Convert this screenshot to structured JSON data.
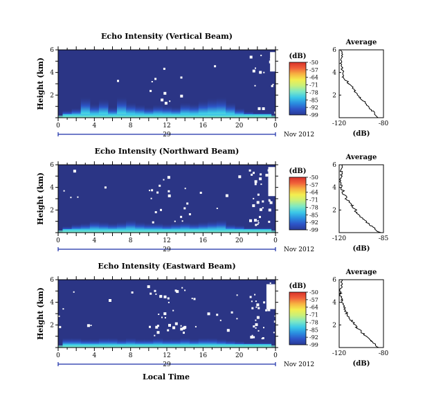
{
  "figure": {
    "time_axis_label": "Local Time",
    "day_label": "29",
    "month_label": "Nov 2012",
    "colorbar_unit": "(dB)",
    "average_title": "Average",
    "average_xlabel": "(dB)",
    "colors": {
      "background_no_echo": "#2b3585",
      "missing": "#ffffff",
      "day_bar": "#1a2fa8",
      "colormap": [
        "#2a3a95",
        "#2d55c8",
        "#2a8ee0",
        "#3cc8e8",
        "#7de8c4",
        "#c8f07a",
        "#f3ee4f",
        "#f7b241",
        "#f0603a",
        "#d9322a"
      ]
    }
  },
  "chart_data": [
    {
      "type": "heatmap",
      "title": "Echo Intensity (Vertical Beam)",
      "ylabel": "Height (km)",
      "x_ticks": [
        "0",
        "4",
        "8",
        "12",
        "16",
        "20",
        "0"
      ],
      "x_range_hours": [
        0,
        24
      ],
      "y_ticks": [
        "6",
        "4",
        "2"
      ],
      "y_range_km": [
        0,
        6
      ],
      "colorbar_ticks": [
        "-50",
        "-57",
        "-64",
        "-71",
        "-78",
        "-85",
        "-92",
        "-99"
      ],
      "colorbar_range_db": [
        -99,
        -50
      ],
      "columns_hours": [
        1,
        2,
        3,
        4,
        5,
        6,
        7,
        8,
        9,
        10,
        11,
        12,
        13,
        14,
        15,
        16,
        17,
        18,
        19,
        20,
        21,
        22,
        23
      ],
      "echo_top_km": [
        0.7,
        0.9,
        1.9,
        1.3,
        1.7,
        1.0,
        1.9,
        1.4,
        1.2,
        1.0,
        1.2,
        1.1,
        1.0,
        1.4,
        1.3,
        1.6,
        1.8,
        1.9,
        1.4,
        0.9,
        0.6,
        0.5,
        0.5
      ],
      "average": {
        "xlim_db": [
          -120,
          -80
        ],
        "x_ticks": [
          "-120",
          "-80"
        ],
        "y_ticks": [
          "6",
          "4",
          "2"
        ],
        "height_km": [
          0.0,
          0.6,
          1.2,
          1.8,
          2.4,
          3.0,
          3.6,
          4.2,
          4.8,
          5.4,
          6.0
        ],
        "value_db": [
          -84,
          -90,
          -95,
          -101,
          -106,
          -111,
          -116,
          -117,
          -119,
          -118,
          -118
        ]
      }
    },
    {
      "type": "heatmap",
      "title": "Echo Intensity (Northward Beam)",
      "ylabel": "Height (km)",
      "x_ticks": [
        "0",
        "4",
        "8",
        "12",
        "16",
        "20",
        "0"
      ],
      "x_range_hours": [
        0,
        24
      ],
      "y_ticks": [
        "6",
        "4",
        "2"
      ],
      "y_range_km": [
        0,
        6
      ],
      "colorbar_ticks": [
        "-50",
        "-57",
        "-64",
        "-71",
        "-78",
        "-85",
        "-92",
        "-99"
      ],
      "colorbar_range_db": [
        -99,
        -50
      ],
      "columns_hours": [
        1,
        2,
        3,
        4,
        5,
        6,
        7,
        8,
        9,
        10,
        11,
        12,
        13,
        14,
        15,
        16,
        17,
        18,
        19,
        20,
        21,
        22,
        23
      ],
      "echo_top_km": [
        0.6,
        0.8,
        0.9,
        1.1,
        1.0,
        0.9,
        1.0,
        1.2,
        1.0,
        0.9,
        0.9,
        0.8,
        0.9,
        1.0,
        0.9,
        1.0,
        1.1,
        1.2,
        0.8,
        0.7,
        0.5,
        0.5,
        0.5
      ],
      "average": {
        "xlim_db": [
          -120,
          -85
        ],
        "x_ticks": [
          "-120",
          "-85"
        ],
        "y_ticks": [
          "6",
          "4",
          "2"
        ],
        "height_km": [
          0.0,
          0.6,
          1.2,
          1.8,
          2.4,
          3.0,
          3.6,
          4.2,
          4.8,
          5.4,
          6.0
        ],
        "value_db": [
          -88,
          -95,
          -101,
          -106,
          -110,
          -114,
          -117,
          -118,
          -119,
          -118,
          -118
        ]
      }
    },
    {
      "type": "heatmap",
      "title": "Echo Intensity (Eastward Beam)",
      "ylabel": "Height (km)",
      "x_ticks": [
        "0",
        "4",
        "8",
        "12",
        "16",
        "20",
        "0"
      ],
      "x_range_hours": [
        0,
        24
      ],
      "y_ticks": [
        "6",
        "4",
        "2"
      ],
      "y_range_km": [
        0,
        6
      ],
      "colorbar_ticks": [
        "-50",
        "-57",
        "-64",
        "-71",
        "-78",
        "-85",
        "-92",
        "-99"
      ],
      "colorbar_range_db": [
        -99,
        -50
      ],
      "columns_hours": [
        1,
        2,
        3,
        4,
        5,
        6,
        7,
        8,
        9,
        10,
        11,
        12,
        13,
        14,
        15,
        16,
        17,
        18,
        19,
        20,
        21,
        22,
        23
      ],
      "echo_top_km": [
        0.9,
        0.9,
        0.8,
        0.8,
        0.9,
        0.9,
        0.8,
        0.9,
        0.8,
        0.8,
        0.9,
        0.8,
        0.8,
        0.9,
        0.8,
        0.9,
        0.9,
        0.8,
        0.7,
        0.6,
        0.5,
        0.5,
        0.5
      ],
      "average": {
        "xlim_db": [
          -120,
          -80
        ],
        "x_ticks": [
          "-120",
          "-80"
        ],
        "y_ticks": [
          "6",
          "4",
          "2"
        ],
        "height_km": [
          0.0,
          0.6,
          1.2,
          1.8,
          2.4,
          3.0,
          3.6,
          4.2,
          4.8,
          5.4,
          6.0
        ],
        "value_db": [
          -84,
          -92,
          -98,
          -104,
          -109,
          -113,
          -116,
          -118,
          -119,
          -118,
          -118
        ]
      }
    }
  ]
}
